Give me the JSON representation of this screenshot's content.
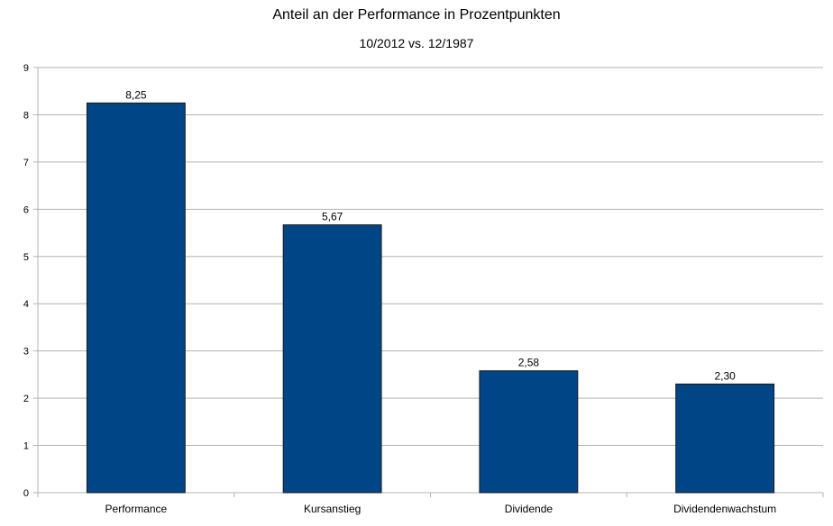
{
  "chart_data": {
    "type": "bar",
    "title": "Anteil an der Performance in Prozentpunkten",
    "subtitle": "10/2012 vs. 12/1987",
    "xlabel": "",
    "ylabel": "",
    "categories": [
      "Performance",
      "Kursanstieg",
      "Dividende",
      "Dividendenwachstum"
    ],
    "values": [
      8.25,
      5.67,
      2.58,
      2.3
    ],
    "value_labels": [
      "8,25",
      "5,67",
      "2,58",
      "2,30"
    ],
    "ylim": [
      0,
      9
    ],
    "yticks": [
      "0",
      "1",
      "2",
      "3",
      "4",
      "5",
      "6",
      "7",
      "8",
      "9"
    ],
    "grid": true,
    "legend": "none",
    "bar_color": "#004586",
    "bar_edge_color": "#1a1a1a",
    "grid_color": "#b3b3b3"
  }
}
